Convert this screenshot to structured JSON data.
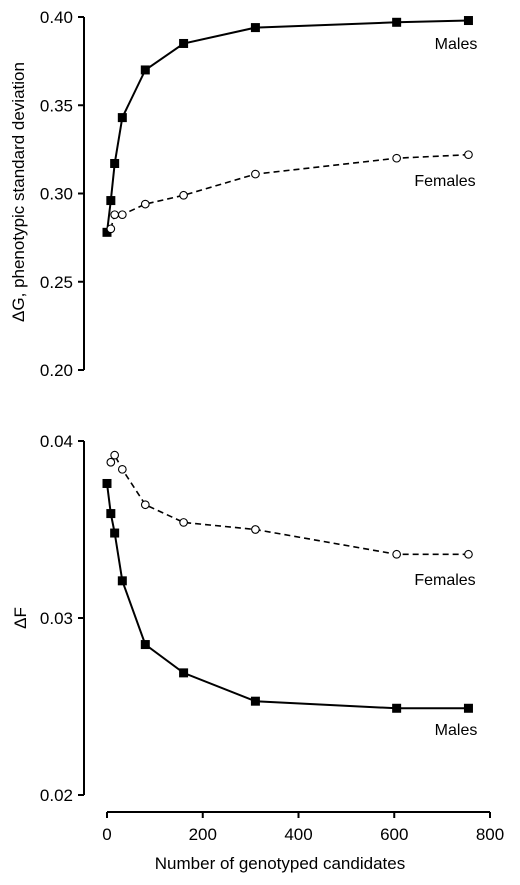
{
  "chart_data": [
    {
      "type": "line",
      "panel": "top",
      "ylabel": "ΔG, phenotypic standard deviation",
      "ylim": [
        0.2,
        0.4
      ],
      "yticks": [
        "0.20",
        "0.25",
        "0.30",
        "0.35",
        "0.40"
      ],
      "grid": false,
      "series": [
        {
          "name": "Males",
          "line_style": "solid",
          "marker": "filled-square",
          "x": [
            0,
            8,
            16,
            32,
            80,
            160,
            310,
            605,
            755
          ],
          "y": [
            0.278,
            0.296,
            0.317,
            0.343,
            0.37,
            0.385,
            0.394,
            0.397,
            0.398
          ]
        },
        {
          "name": "Females",
          "line_style": "dashed",
          "marker": "open-circle",
          "x": [
            8,
            16,
            32,
            80,
            160,
            310,
            605,
            755
          ],
          "y": [
            0.28,
            0.288,
            0.288,
            0.294,
            0.299,
            0.311,
            0.32,
            0.322
          ]
        }
      ]
    },
    {
      "type": "line",
      "panel": "bottom",
      "ylabel": "ΔF",
      "xlabel": "Number of genotyped candidates",
      "xlim": [
        0,
        800
      ],
      "xticks": [
        "0",
        "200",
        "400",
        "600",
        "800"
      ],
      "ylim": [
        0.02,
        0.04
      ],
      "yticks": [
        "0.02",
        "0.03",
        "0.04"
      ],
      "grid": false,
      "series": [
        {
          "name": "Females",
          "line_style": "dashed",
          "marker": "open-circle",
          "x": [
            8,
            16,
            32,
            80,
            160,
            310,
            605,
            755
          ],
          "y": [
            0.0388,
            0.0392,
            0.0384,
            0.0364,
            0.0354,
            0.035,
            0.0336,
            0.0336
          ]
        },
        {
          "name": "Males",
          "line_style": "solid",
          "marker": "filled-square",
          "x": [
            0,
            8,
            16,
            32,
            80,
            160,
            310,
            605,
            755
          ],
          "y": [
            0.0376,
            0.0359,
            0.0348,
            0.0321,
            0.0285,
            0.0269,
            0.0253,
            0.0249,
            0.0249
          ]
        }
      ]
    }
  ]
}
